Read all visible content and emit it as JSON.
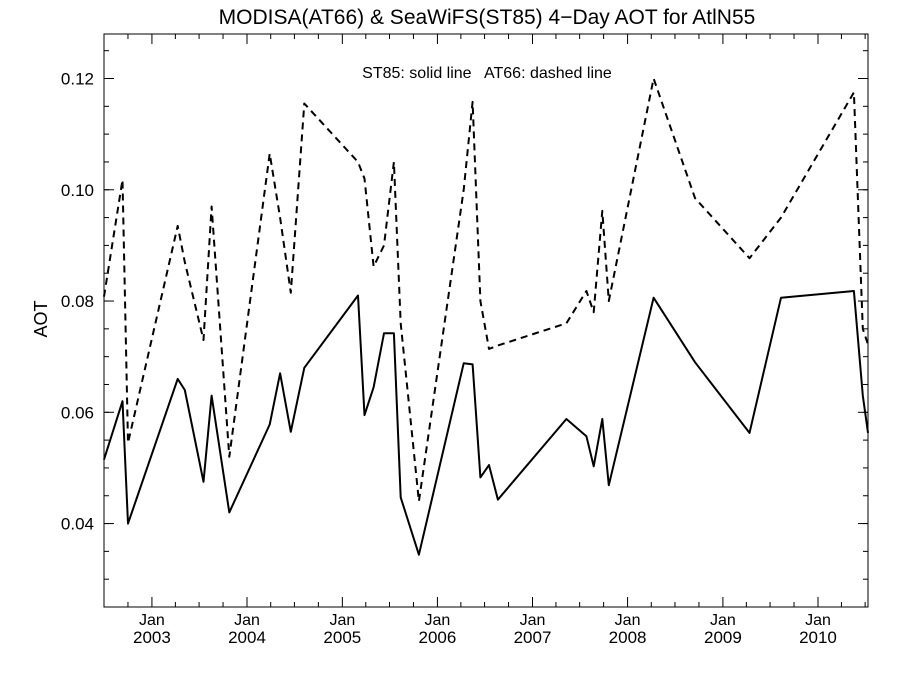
{
  "chart_data": {
    "type": "line",
    "title": "MODISA(AT66) & SeaWiFS(ST85) 4−Day AOT for AtlN55",
    "ylabel": "AOT",
    "xlabel": "",
    "annotation": "ST85: solid line   AT66: dashed line",
    "ylim": [
      0.025,
      0.128
    ],
    "xlim": [
      "2002-07-01",
      "2010-07-12"
    ],
    "y_ticks": [
      0.04,
      0.06,
      0.08,
      0.1,
      0.12
    ],
    "y_tick_labels": [
      "0.04",
      "0.06",
      "0.08",
      "0.10",
      "0.12"
    ],
    "x_ticks": [
      {
        "date": "2003-01-01",
        "month": "Jan",
        "year": "2003"
      },
      {
        "date": "2004-01-01",
        "month": "Jan",
        "year": "2004"
      },
      {
        "date": "2005-01-01",
        "month": "Jan",
        "year": "2005"
      },
      {
        "date": "2006-01-01",
        "month": "Jan",
        "year": "2006"
      },
      {
        "date": "2007-01-01",
        "month": "Jan",
        "year": "2007"
      },
      {
        "date": "2008-01-01",
        "month": "Jan",
        "year": "2008"
      },
      {
        "date": "2009-01-01",
        "month": "Jan",
        "year": "2009"
      },
      {
        "date": "2010-01-01",
        "month": "Jan",
        "year": "2010"
      }
    ],
    "grid": false,
    "series": [
      {
        "name": "ST85",
        "style": "solid",
        "color": "#000000",
        "points": [
          [
            "2002-07-01",
            0.0515
          ],
          [
            "2002-09-10",
            0.062
          ],
          [
            "2002-10-01",
            0.04
          ],
          [
            "2003-04-10",
            0.066
          ],
          [
            "2003-05-07",
            0.064
          ],
          [
            "2003-07-18",
            0.0475
          ],
          [
            "2003-08-18",
            0.063
          ],
          [
            "2003-10-25",
            0.042
          ],
          [
            "2004-03-28",
            0.0578
          ],
          [
            "2004-05-07",
            0.067
          ],
          [
            "2004-06-17",
            0.0565
          ],
          [
            "2004-08-08",
            0.068
          ],
          [
            "2005-03-02",
            0.081
          ],
          [
            "2005-03-27",
            0.0595
          ],
          [
            "2005-05-01",
            0.0645
          ],
          [
            "2005-06-10",
            0.0742
          ],
          [
            "2005-07-18",
            0.0742
          ],
          [
            "2005-08-13",
            0.0447
          ],
          [
            "2005-10-22",
            0.0344
          ],
          [
            "2006-04-12",
            0.0688
          ],
          [
            "2006-05-16",
            0.0686
          ],
          [
            "2006-06-15",
            0.0483
          ],
          [
            "2006-07-18",
            0.0505
          ],
          [
            "2006-08-21",
            0.0443
          ],
          [
            "2007-05-11",
            0.0588
          ],
          [
            "2007-07-27",
            0.0557
          ],
          [
            "2007-08-24",
            0.0503
          ],
          [
            "2007-09-26",
            0.0588
          ],
          [
            "2007-10-21",
            0.0469
          ],
          [
            "2008-04-10",
            0.0806
          ],
          [
            "2008-09-16",
            0.069
          ],
          [
            "2009-04-13",
            0.0563
          ],
          [
            "2009-08-12",
            0.0806
          ],
          [
            "2010-05-19",
            0.0818
          ],
          [
            "2010-06-22",
            0.063
          ],
          [
            "2010-07-12",
            0.0563
          ]
        ]
      },
      {
        "name": "AT66",
        "style": "dashed",
        "color": "#000000",
        "points": [
          [
            "2002-07-01",
            0.0808
          ],
          [
            "2002-09-10",
            0.1018
          ],
          [
            "2002-10-01",
            0.0545
          ],
          [
            "2003-04-10",
            0.0935
          ],
          [
            "2003-05-07",
            0.087
          ],
          [
            "2003-07-18",
            0.073
          ],
          [
            "2003-08-18",
            0.097
          ],
          [
            "2003-10-25",
            0.052
          ],
          [
            "2004-03-28",
            0.1065
          ],
          [
            "2004-05-07",
            0.095
          ],
          [
            "2004-06-17",
            0.0815
          ],
          [
            "2004-08-08",
            0.1155
          ],
          [
            "2005-03-02",
            0.105
          ],
          [
            "2005-03-27",
            0.102
          ],
          [
            "2005-05-01",
            0.0862
          ],
          [
            "2005-06-10",
            0.09
          ],
          [
            "2005-07-18",
            0.105
          ],
          [
            "2005-08-13",
            0.076
          ],
          [
            "2005-10-22",
            0.044
          ],
          [
            "2006-04-12",
            0.1
          ],
          [
            "2006-05-16",
            0.1158
          ],
          [
            "2006-06-15",
            0.08
          ],
          [
            "2006-07-18",
            0.0714
          ],
          [
            "2006-08-21",
            0.072
          ],
          [
            "2007-05-11",
            0.076
          ],
          [
            "2007-07-27",
            0.0818
          ],
          [
            "2007-08-24",
            0.078
          ],
          [
            "2007-09-26",
            0.0962
          ],
          [
            "2007-10-21",
            0.08
          ],
          [
            "2008-04-10",
            0.12
          ],
          [
            "2008-09-16",
            0.0985
          ],
          [
            "2009-04-13",
            0.0877
          ],
          [
            "2009-08-12",
            0.095
          ],
          [
            "2010-05-19",
            0.1175
          ],
          [
            "2010-06-22",
            0.075
          ],
          [
            "2010-07-12",
            0.0722
          ]
        ]
      }
    ]
  }
}
